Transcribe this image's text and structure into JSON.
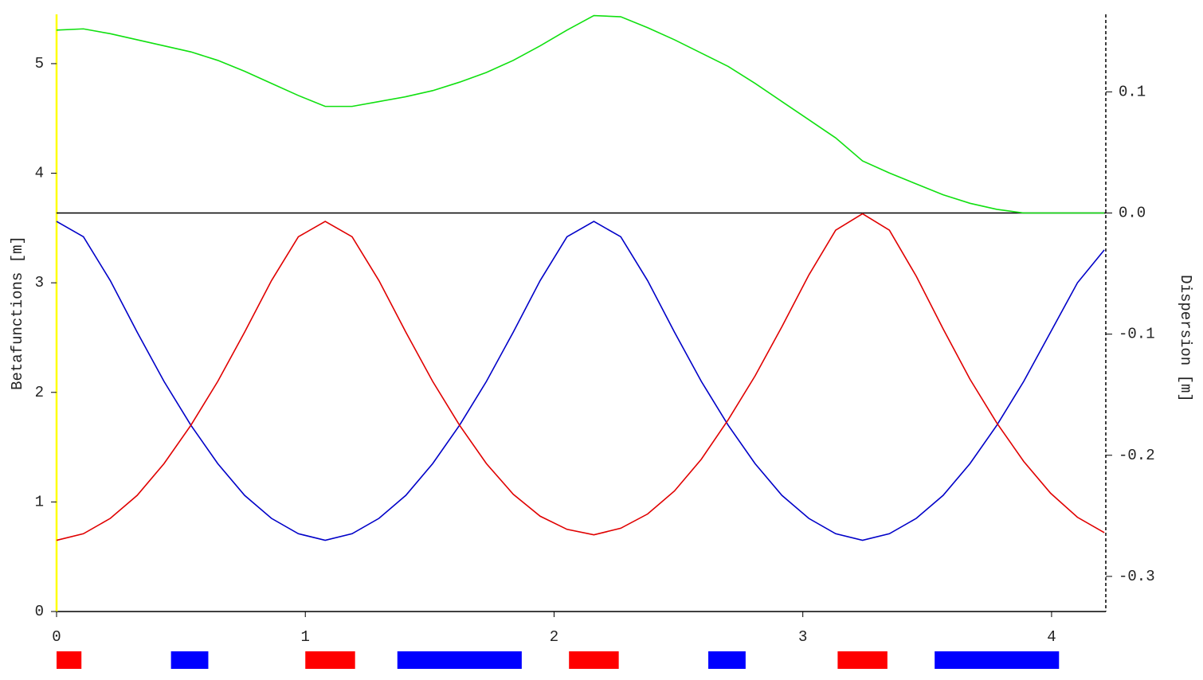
{
  "chart_data": {
    "type": "line",
    "ylabel": "Betafunctions [m]",
    "y2label": "Dispersion [m]",
    "x": [
      0,
      0.108,
      0.216,
      0.324,
      0.432,
      0.54,
      0.648,
      0.756,
      0.864,
      0.972,
      1.08,
      1.188,
      1.296,
      1.404,
      1.512,
      1.62,
      1.728,
      1.836,
      1.944,
      2.052,
      2.16,
      2.268,
      2.376,
      2.484,
      2.592,
      2.7,
      2.808,
      2.916,
      3.024,
      3.132,
      3.24,
      3.348,
      3.456,
      3.564,
      3.672,
      3.78,
      3.888,
      3.996,
      4.104,
      4.212
    ],
    "series": [
      {
        "color": "#0000c8",
        "values": [
          3.56,
          3.42,
          3.02,
          2.55,
          2.1,
          1.7,
          1.35,
          1.06,
          0.85,
          0.71,
          0.65,
          0.71,
          0.85,
          1.06,
          1.35,
          1.7,
          2.1,
          2.55,
          3.02,
          3.42,
          3.56,
          3.42,
          3.02,
          2.55,
          2.1,
          1.7,
          1.35,
          1.06,
          0.85,
          0.71,
          0.65,
          0.71,
          0.85,
          1.06,
          1.35,
          1.7,
          2.1,
          2.55,
          3.0,
          3.3
        ]
      },
      {
        "color": "#e00000",
        "values": [
          0.65,
          0.71,
          0.85,
          1.06,
          1.35,
          1.7,
          2.1,
          2.55,
          3.02,
          3.42,
          3.56,
          3.42,
          3.02,
          2.55,
          2.1,
          1.7,
          1.35,
          1.07,
          0.87,
          0.75,
          0.7,
          0.76,
          0.89,
          1.1,
          1.39,
          1.75,
          2.15,
          2.6,
          3.07,
          3.48,
          3.63,
          3.48,
          3.06,
          2.58,
          2.12,
          1.72,
          1.37,
          1.08,
          0.86,
          0.72
        ]
      },
      {
        "color": "#10e010",
        "axis": "y2",
        "values": [
          0.151,
          0.152,
          0.148,
          0.143,
          0.138,
          0.133,
          0.126,
          0.117,
          0.107,
          0.097,
          0.088,
          0.088,
          0.092,
          0.096,
          0.101,
          0.108,
          0.116,
          0.126,
          0.138,
          0.151,
          0.163,
          0.162,
          0.153,
          0.143,
          0.132,
          0.121,
          0.107,
          0.092,
          0.077,
          0.062,
          0.043,
          0.033,
          0.024,
          0.015,
          0.008,
          0.003,
          0,
          0,
          0,
          0
        ]
      }
    ],
    "xlim": [
      0,
      4.218
    ],
    "xticks": [
      0,
      1,
      2,
      3,
      4
    ],
    "ylim": [
      0,
      5.45
    ],
    "yticks": [
      0,
      1,
      2,
      3,
      4,
      5
    ],
    "y2lim": [
      -0.329,
      0.164
    ],
    "y2ticks": [
      {
        "value": -0.3,
        "label": "-0.3"
      },
      {
        "value": -0.2,
        "label": "-0.2"
      },
      {
        "value": -0.1,
        "label": "-0.1"
      },
      {
        "value": 0,
        "label": "0.0"
      },
      0.1
    ],
    "elements": [
      {
        "start": 0,
        "end": 0.1,
        "color": "#ff0000"
      },
      {
        "start": 0.46,
        "end": 0.61,
        "color": "#0000ff"
      },
      {
        "start": 1.0,
        "end": 1.2,
        "color": "#ff0000"
      },
      {
        "start": 1.37,
        "end": 1.87,
        "color": "#0000ff"
      },
      {
        "start": 2.06,
        "end": 2.26,
        "color": "#ff0000"
      },
      {
        "start": 2.62,
        "end": 2.77,
        "color": "#0000ff"
      },
      {
        "start": 3.14,
        "end": 3.34,
        "color": "#ff0000"
      },
      {
        "start": 3.53,
        "end": 4.03,
        "color": "#0000ff"
      }
    ]
  }
}
